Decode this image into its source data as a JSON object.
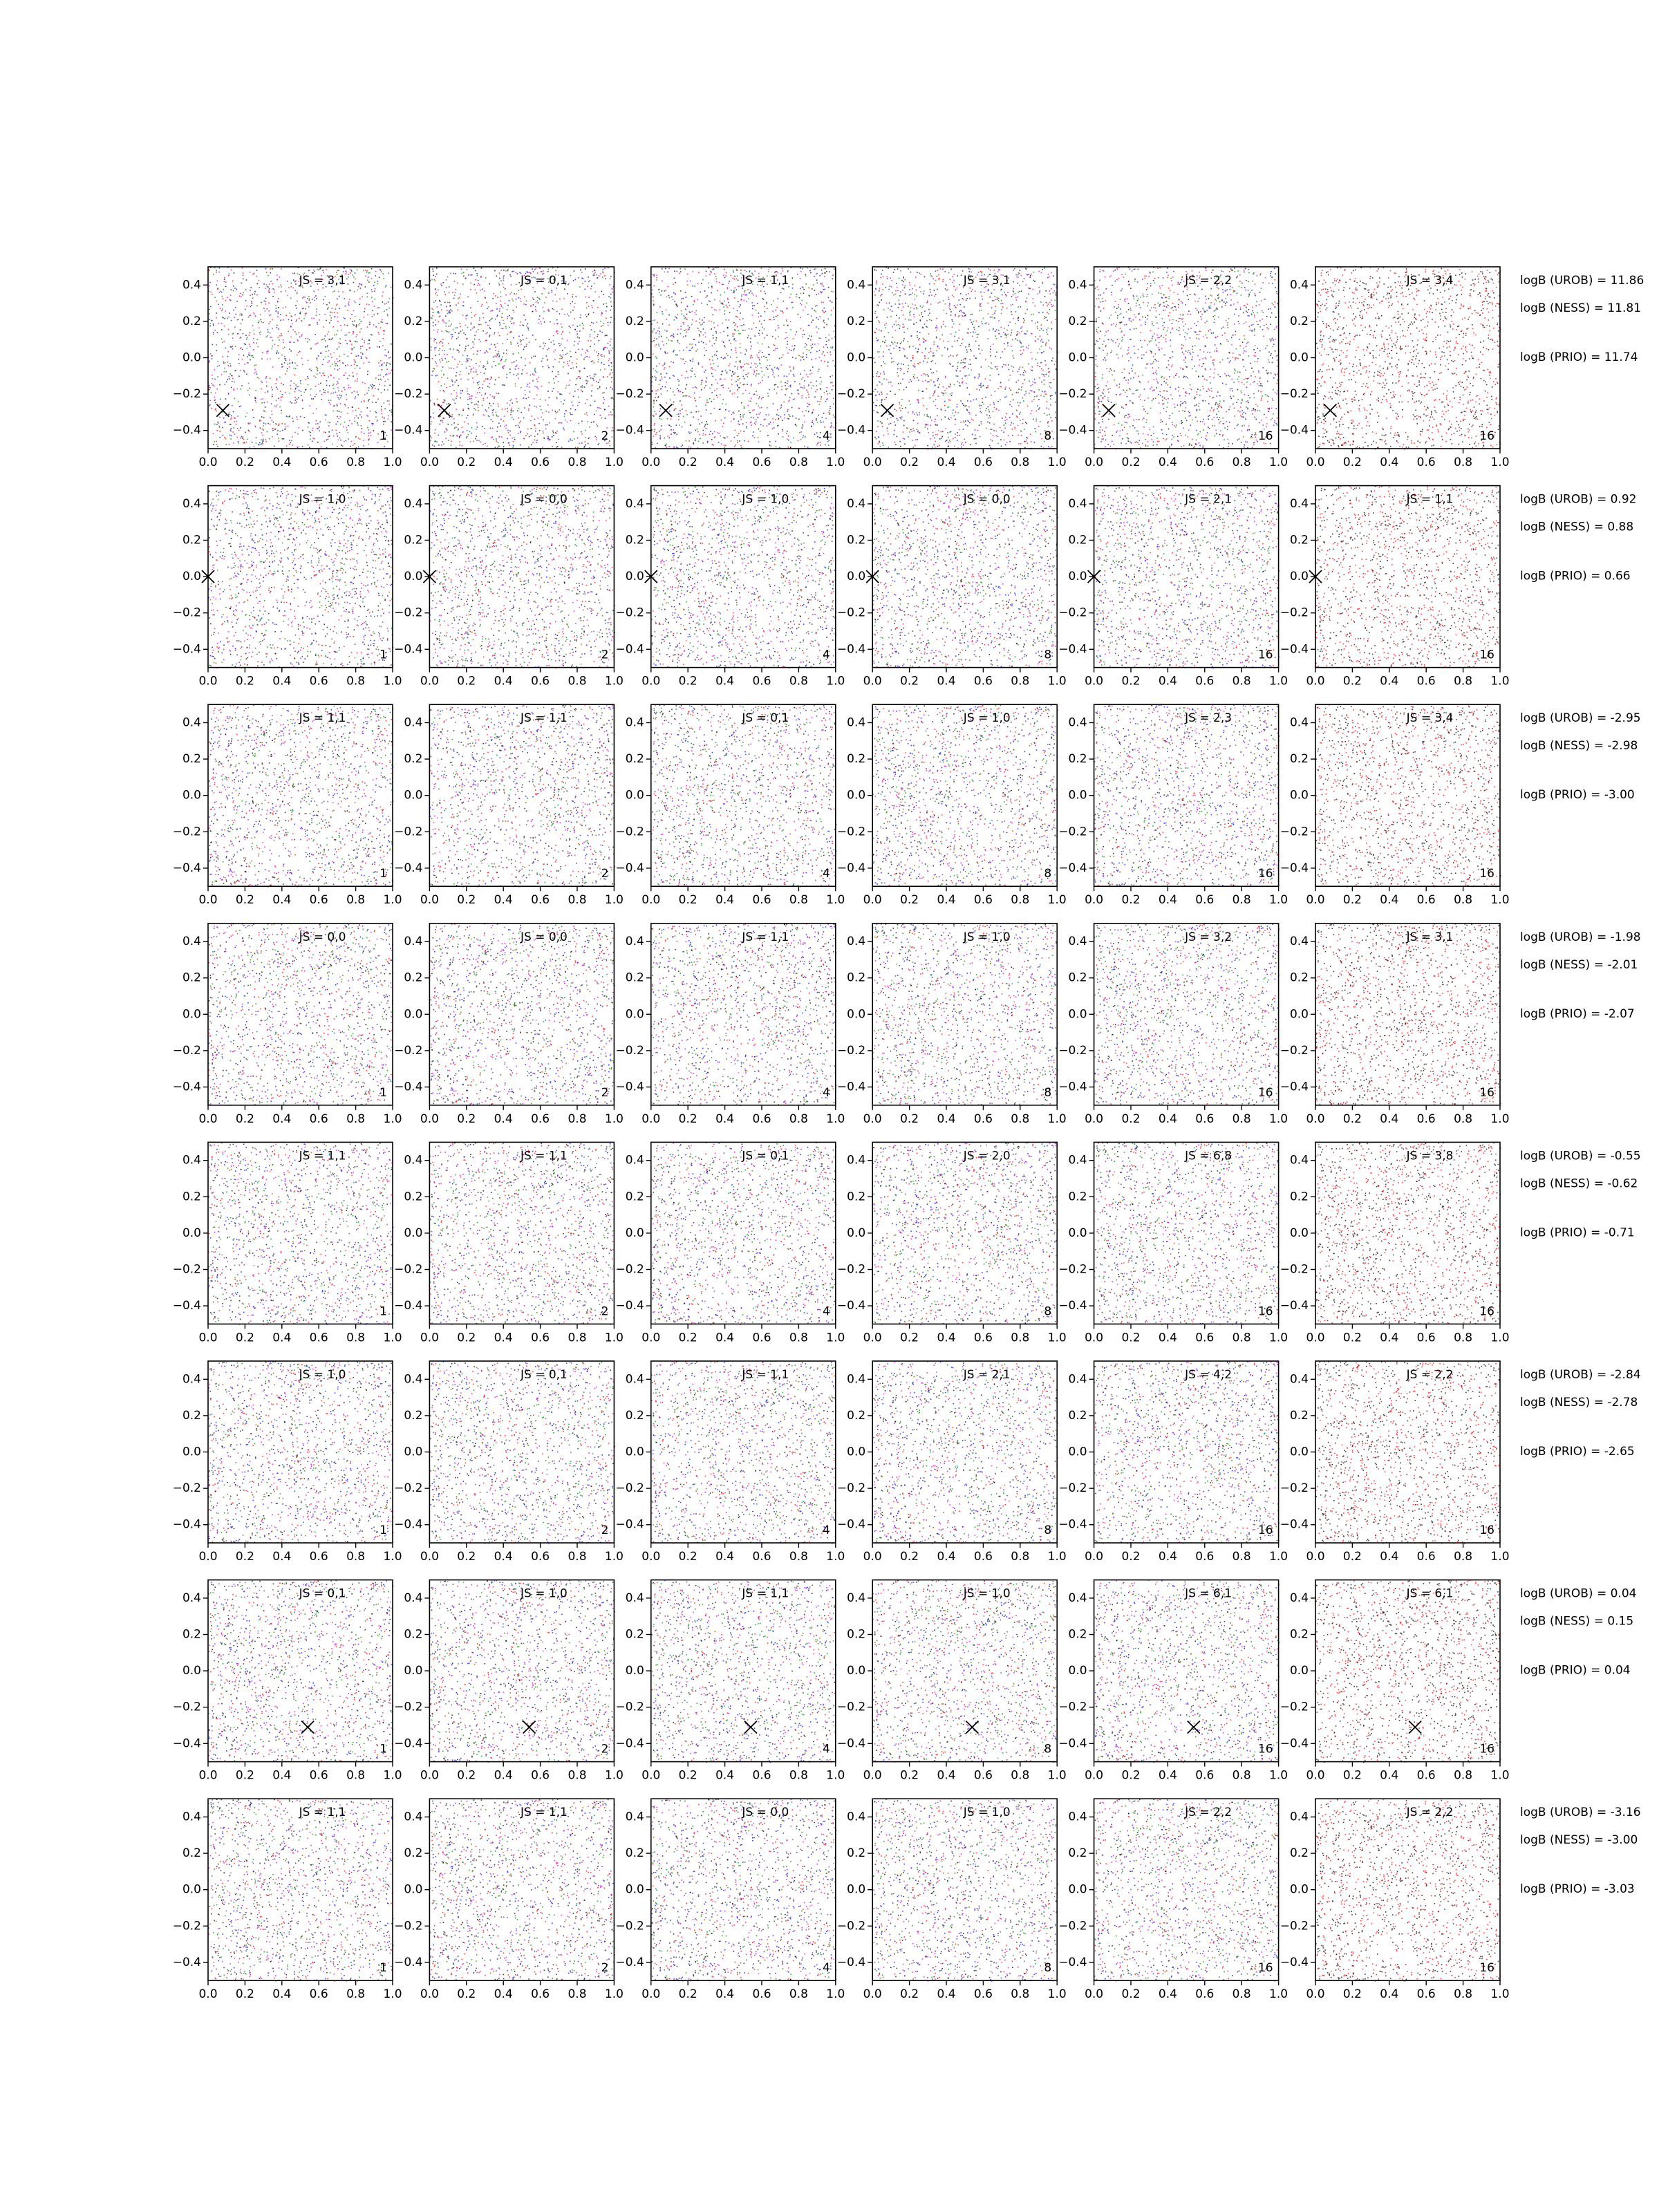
{
  "xlim": [
    0,
    1
  ],
  "ylim": [
    -0.5,
    0.5
  ],
  "xticks": [
    {
      "value": 0,
      "label": "0.0"
    },
    0.2,
    0.4,
    0.6,
    0.8,
    {
      "value": 1,
      "label": "1.0"
    }
  ],
  "yticks": [
    {
      "value": -0.4,
      "label": "−0.4"
    },
    {
      "value": -0.2,
      "label": "−0.2"
    },
    {
      "value": 0,
      "label": "0.0"
    },
    0.2,
    0.4
  ],
  "panel_labels": [
    1,
    2,
    4,
    8,
    16,
    16
  ],
  "rows": [
    {
      "js": [
        "JS = 3,1",
        "JS = 0,1",
        "JS = 1,1",
        "JS = 3,1",
        "JS = 2,2",
        "JS = 3,4"
      ],
      "marker": [
        0.08,
        -0.29
      ],
      "logb": [
        "logB (UROB) = 11.86",
        "logB (NESS) = 11.81",
        "logB (PRIO) = 11.74"
      ]
    },
    {
      "js": [
        "JS = 1,0",
        "JS = 0,0",
        "JS = 1,0",
        "JS = 0,0",
        "JS = 2,1",
        "JS = 1,1"
      ],
      "marker": [
        0,
        0
      ],
      "logb": [
        "logB (UROB) = 0.92",
        "logB (NESS) = 0.88",
        "logB (PRIO) = 0.66"
      ]
    },
    {
      "js": [
        "JS = 1,1",
        "JS = 1,1",
        "JS = 0,1",
        "JS = 1,0",
        "JS = 2,3",
        "JS = 3,4"
      ],
      "logb": [
        "logB (UROB) = -2.95",
        "logB (NESS) = -2.98",
        "logB (PRIO) = -3.00"
      ]
    },
    {
      "js": [
        "JS = 0,0",
        "JS = 0,0",
        "JS = 1,1",
        "JS = 1,0",
        "JS = 3,2",
        "JS = 3,1"
      ],
      "logb": [
        "logB (UROB) = -1.98",
        "logB (NESS) = -2.01",
        "logB (PRIO) = -2.07"
      ]
    },
    {
      "js": [
        "JS = 1,1",
        "JS = 1,1",
        "JS = 0,1",
        "JS = 2,0",
        "JS = 6,8",
        "JS = 3,8"
      ],
      "logb": [
        "logB (UROB) = -0.55",
        "logB (NESS) = -0.62",
        "logB (PRIO) = -0.71"
      ]
    },
    {
      "js": [
        "JS = 1,0",
        "JS = 0,1",
        "JS = 1,1",
        "JS = 2,1",
        "JS = 4,2",
        "JS = 2,2"
      ],
      "logb": [
        "logB (UROB) = -2.84",
        "logB (NESS) = -2.78",
        "logB (PRIO) = -2.65"
      ]
    },
    {
      "js": [
        "JS = 0,1",
        "JS = 1,0",
        "JS = 1,1",
        "JS = 1,0",
        "JS = 6,1",
        "JS = 6,1"
      ],
      "marker": [
        0.54,
        -0.31
      ],
      "logb": [
        "logB (UROB) = 0.04",
        "logB (NESS) = 0.15",
        "logB (PRIO) = 0.04"
      ]
    },
    {
      "js": [
        "JS = 1,1",
        "JS = 1,1",
        "JS = 0,0",
        "JS = 1,0",
        "JS = 2,2",
        "JS = 2,2"
      ],
      "logb": [
        "logB (UROB) = -3.16",
        "logB (NESS) = -3.00",
        "logB (PRIO) = -3.03"
      ]
    }
  ]
}
